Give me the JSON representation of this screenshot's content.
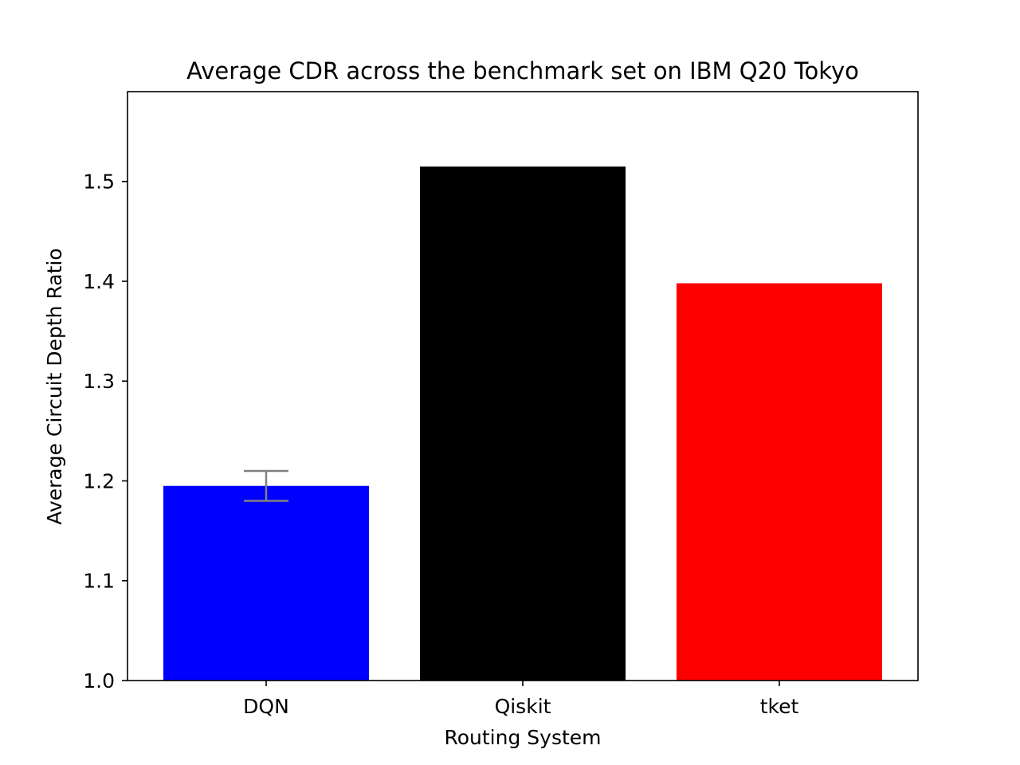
{
  "chart_data": {
    "type": "bar",
    "title": "Average CDR across the benchmark set on IBM Q20 Tokyo",
    "xlabel": "Routing System",
    "ylabel": "Average Circuit Depth Ratio",
    "categories": [
      "DQN",
      "Qiskit",
      "tket"
    ],
    "values": [
      1.195,
      1.515,
      1.398
    ],
    "colors": [
      "#0000ff",
      "#000000",
      "#ff0000"
    ],
    "error_bars": [
      {
        "category": "DQN",
        "low": 1.18,
        "high": 1.21,
        "color": "#808080"
      }
    ],
    "ylim": [
      1.0,
      1.59
    ],
    "yticks": [
      1.0,
      1.1,
      1.2,
      1.3,
      1.4,
      1.5
    ],
    "ytick_labels": [
      "1.0",
      "1.1",
      "1.2",
      "1.3",
      "1.4",
      "1.5"
    ],
    "grid": false,
    "legend": "none"
  }
}
